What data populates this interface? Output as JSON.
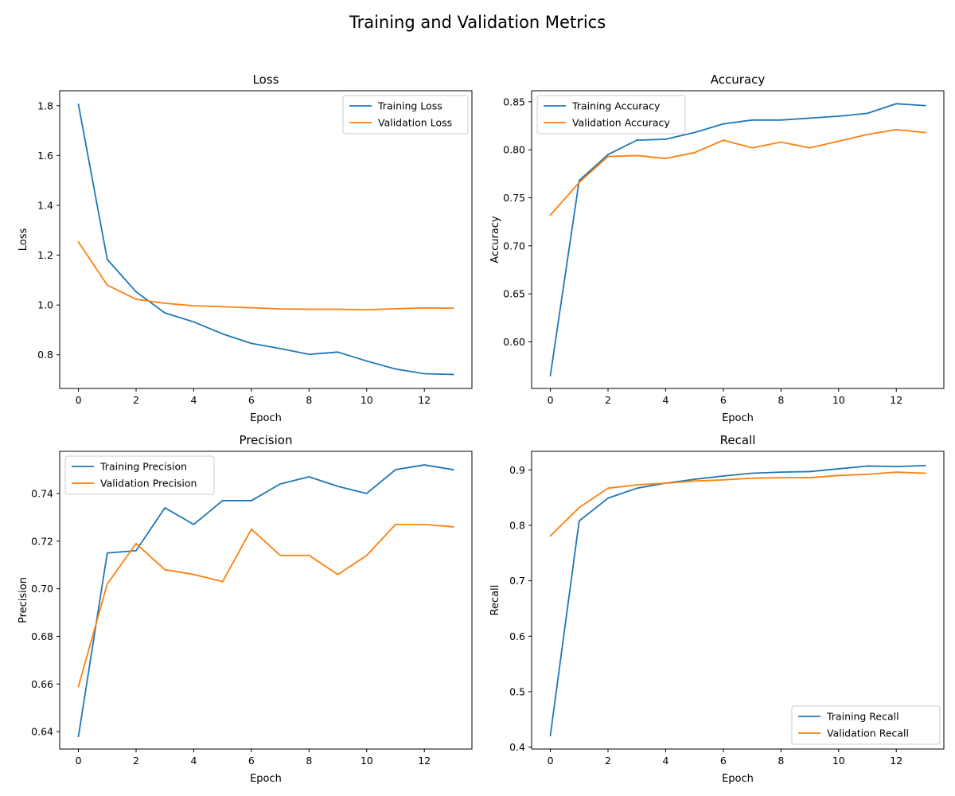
{
  "figure": {
    "title": "Training and Validation Metrics"
  },
  "colors": {
    "training": "#1f77b4",
    "validation": "#ff7f0e"
  },
  "chart_data": [
    {
      "type": "line",
      "title": "Loss",
      "xlabel": "Epoch",
      "ylabel": "Loss",
      "x": [
        0,
        1,
        2,
        3,
        4,
        5,
        6,
        7,
        8,
        9,
        10,
        11,
        12,
        13
      ],
      "xlim": [
        -0.65,
        13.65
      ],
      "ylim": [
        0.665,
        1.86
      ],
      "xticks": [
        0,
        2,
        4,
        6,
        8,
        10,
        12
      ],
      "yticks": [
        0.8,
        1.0,
        1.2,
        1.4,
        1.6,
        1.8
      ],
      "ytick_decimals": 1,
      "legend_position": "top-right",
      "series": [
        {
          "name": "Training Loss",
          "color": "#1f77b4",
          "values": [
            1.805,
            1.183,
            1.053,
            0.968,
            0.932,
            0.884,
            0.846,
            0.825,
            0.802,
            0.811,
            0.775,
            0.743,
            0.724,
            0.721
          ]
        },
        {
          "name": "Validation Loss",
          "color": "#ff7f0e",
          "values": [
            1.253,
            1.08,
            1.023,
            1.007,
            0.997,
            0.993,
            0.989,
            0.984,
            0.983,
            0.983,
            0.981,
            0.985,
            0.988,
            0.987
          ]
        }
      ]
    },
    {
      "type": "line",
      "title": "Accuracy",
      "xlabel": "Epoch",
      "ylabel": "Accuracy",
      "x": [
        0,
        1,
        2,
        3,
        4,
        5,
        6,
        7,
        8,
        9,
        10,
        11,
        12,
        13
      ],
      "xlim": [
        -0.65,
        13.65
      ],
      "ylim": [
        0.5515,
        0.8615
      ],
      "xticks": [
        0,
        2,
        4,
        6,
        8,
        10,
        12
      ],
      "yticks": [
        0.6,
        0.65,
        0.7,
        0.75,
        0.8,
        0.85
      ],
      "ytick_decimals": 2,
      "legend_position": "top-left",
      "series": [
        {
          "name": "Training Accuracy",
          "color": "#1f77b4",
          "values": [
            0.565,
            0.768,
            0.795,
            0.81,
            0.811,
            0.818,
            0.827,
            0.831,
            0.831,
            0.833,
            0.835,
            0.838,
            0.848,
            0.846
          ]
        },
        {
          "name": "Validation Accuracy",
          "color": "#ff7f0e",
          "values": [
            0.732,
            0.766,
            0.793,
            0.794,
            0.791,
            0.797,
            0.81,
            0.802,
            0.808,
            0.802,
            0.809,
            0.816,
            0.821,
            0.818
          ]
        }
      ]
    },
    {
      "type": "line",
      "title": "Precision",
      "xlabel": "Epoch",
      "ylabel": "Precision",
      "x": [
        0,
        1,
        2,
        3,
        4,
        5,
        6,
        7,
        8,
        9,
        10,
        11,
        12,
        13
      ],
      "xlim": [
        -0.65,
        13.65
      ],
      "ylim": [
        0.6327,
        0.7577
      ],
      "xticks": [
        0,
        2,
        4,
        6,
        8,
        10,
        12
      ],
      "yticks": [
        0.64,
        0.66,
        0.68,
        0.7,
        0.72,
        0.74
      ],
      "ytick_decimals": 2,
      "legend_position": "top-left",
      "series": [
        {
          "name": "Training Precision",
          "color": "#1f77b4",
          "values": [
            0.638,
            0.715,
            0.716,
            0.734,
            0.727,
            0.737,
            0.737,
            0.744,
            0.747,
            0.743,
            0.74,
            0.75,
            0.752,
            0.75
          ]
        },
        {
          "name": "Validation Precision",
          "color": "#ff7f0e",
          "values": [
            0.659,
            0.702,
            0.719,
            0.708,
            0.706,
            0.703,
            0.725,
            0.714,
            0.714,
            0.706,
            0.714,
            0.727,
            0.727,
            0.726
          ]
        }
      ]
    },
    {
      "type": "line",
      "title": "Recall",
      "xlabel": "Epoch",
      "ylabel": "Recall",
      "x": [
        0,
        1,
        2,
        3,
        4,
        5,
        6,
        7,
        8,
        9,
        10,
        11,
        12,
        13
      ],
      "xlim": [
        -0.65,
        13.65
      ],
      "ylim": [
        0.3965,
        0.9335
      ],
      "xticks": [
        0,
        2,
        4,
        6,
        8,
        10,
        12
      ],
      "yticks": [
        0.4,
        0.5,
        0.6,
        0.7,
        0.8,
        0.9
      ],
      "ytick_decimals": 1,
      "legend_position": "bottom-right",
      "series": [
        {
          "name": "Training Recall",
          "color": "#1f77b4",
          "values": [
            0.421,
            0.808,
            0.849,
            0.867,
            0.876,
            0.883,
            0.889,
            0.894,
            0.896,
            0.897,
            0.902,
            0.907,
            0.906,
            0.908
          ]
        },
        {
          "name": "Validation Recall",
          "color": "#ff7f0e",
          "values": [
            0.781,
            0.832,
            0.867,
            0.873,
            0.876,
            0.88,
            0.882,
            0.885,
            0.886,
            0.886,
            0.89,
            0.892,
            0.896,
            0.894
          ]
        }
      ]
    }
  ]
}
